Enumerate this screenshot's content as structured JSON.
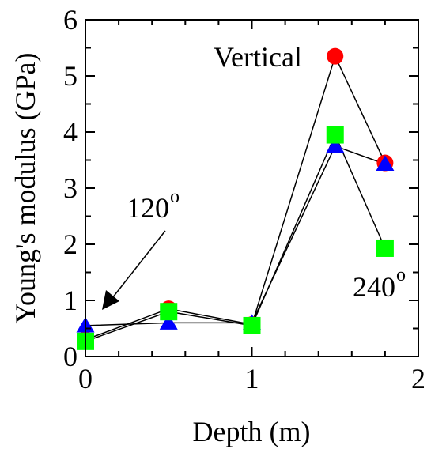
{
  "chart_data": {
    "type": "line",
    "xlabel": "Depth (m)",
    "ylabel": "Young's modulus (GPa)",
    "xlim": [
      0,
      2
    ],
    "ylim": [
      0,
      6
    ],
    "xticks": [
      0,
      1,
      2
    ],
    "yticks": [
      0,
      1,
      2,
      3,
      4,
      5,
      6
    ],
    "grid": false,
    "series": [
      {
        "name": "Vertical",
        "marker": "circle",
        "color": "#ff0000",
        "x": [
          0,
          0.5,
          1,
          1.5,
          1.8
        ],
        "y": [
          0.3,
          0.85,
          0.57,
          5.35,
          3.45
        ]
      },
      {
        "name": "120",
        "marker": "triangle",
        "color": "#0000ff",
        "x": [
          0,
          0.5,
          1,
          1.5,
          1.8
        ],
        "y": [
          0.55,
          0.6,
          0.6,
          3.75,
          3.43
        ]
      },
      {
        "name": "240",
        "marker": "square",
        "color": "#00ff00",
        "x": [
          0,
          0.5,
          1,
          1.5,
          1.8
        ],
        "y": [
          0.27,
          0.8,
          0.55,
          3.95,
          1.93
        ]
      }
    ],
    "annotations": {
      "vertical": "Vertical",
      "deg120": "120",
      "deg240": "240",
      "degree_mark": "o"
    }
  }
}
